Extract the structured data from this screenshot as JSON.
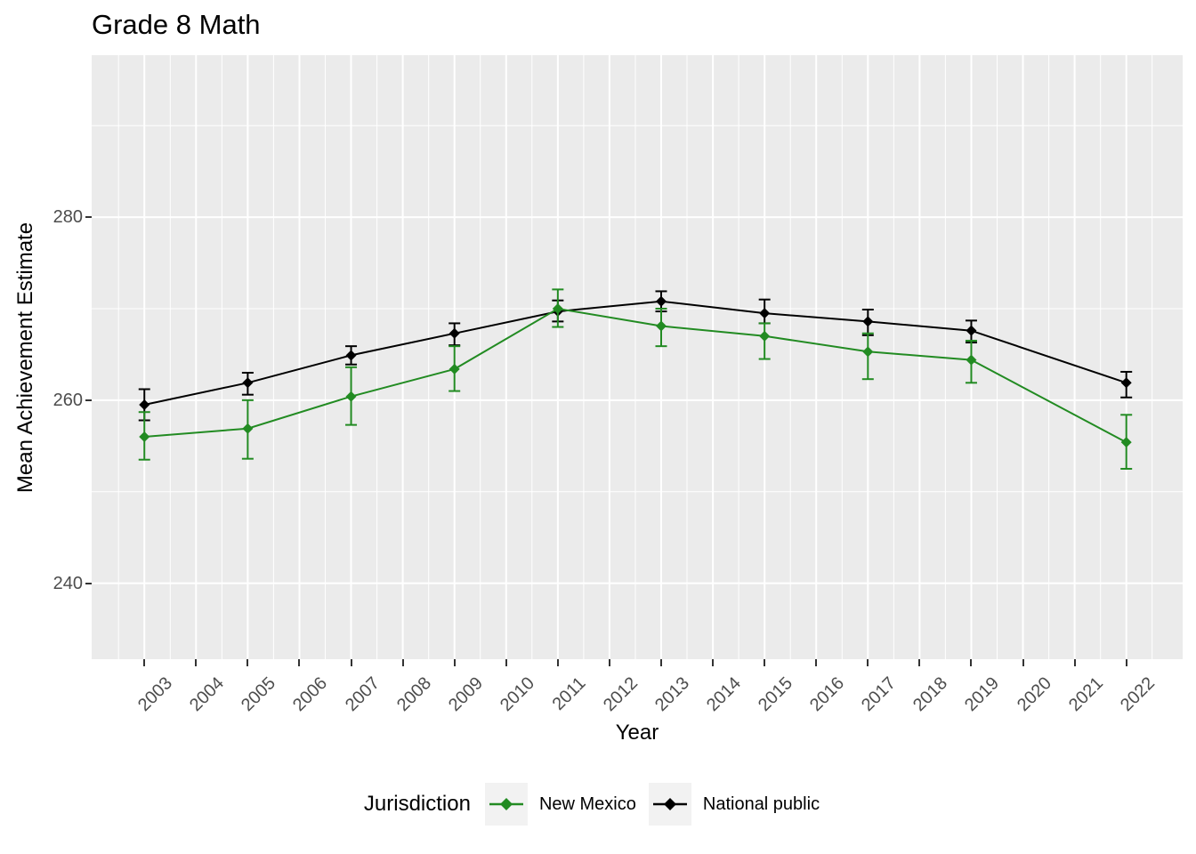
{
  "title": "Grade 8 Math",
  "axes": {
    "x": {
      "label": "Year"
    },
    "y": {
      "label": "Mean Achievement Estimate",
      "minor_ticks": [
        250,
        270,
        290
      ]
    }
  },
  "legend": {
    "title": "Jurisdiction",
    "items": [
      {
        "label": "New Mexico",
        "color": "#228B22"
      },
      {
        "label": "National public",
        "color": "#000000"
      }
    ]
  },
  "colors": {
    "panel_bg": "#EBEBEB",
    "grid": "#FFFFFF",
    "tick_label": "#4D4D4D",
    "tick_mark": "#333333",
    "legend_key_bg": "#F2F2F2"
  },
  "chart_data": {
    "type": "line",
    "title": "Grade 8 Math",
    "xlabel": "Year",
    "ylabel": "Mean Achievement Estimate",
    "x": [
      2003,
      2005,
      2007,
      2009,
      2011,
      2013,
      2015,
      2017,
      2019,
      2022
    ],
    "x_ticks": [
      2003,
      2004,
      2005,
      2006,
      2007,
      2008,
      2009,
      2010,
      2011,
      2012,
      2013,
      2014,
      2015,
      2016,
      2017,
      2018,
      2019,
      2020,
      2021,
      2022
    ],
    "y_ticks": [
      240,
      260,
      280
    ],
    "y_minor_ticks": [
      250,
      270,
      290
    ],
    "xlim": [
      2001.98,
      2023.09
    ],
    "ylim": [
      231.7,
      297.7
    ],
    "grid": true,
    "legend_position": "bottom",
    "error_bars": true,
    "marker": "diamond",
    "series": [
      {
        "name": "National public",
        "color": "#000000",
        "values": [
          259.5,
          261.9,
          264.9,
          267.3,
          269.7,
          270.8,
          269.5,
          268.6,
          267.6,
          261.9
        ],
        "ci_low": [
          257.8,
          260.6,
          263.9,
          266.0,
          268.6,
          269.7,
          268.4,
          267.1,
          266.3,
          260.3
        ],
        "ci_high": [
          261.2,
          263.0,
          265.9,
          268.4,
          270.9,
          271.9,
          271.0,
          269.9,
          268.7,
          263.1
        ]
      },
      {
        "name": "New Mexico",
        "color": "#228B22",
        "values": [
          256.0,
          256.9,
          260.4,
          263.4,
          270.0,
          268.1,
          267.0,
          265.3,
          264.4,
          255.4
        ],
        "ci_low": [
          253.5,
          253.6,
          257.3,
          261.0,
          268.0,
          265.9,
          264.5,
          262.3,
          261.9,
          252.5
        ],
        "ci_high": [
          258.7,
          260.0,
          263.6,
          265.9,
          272.1,
          270.0,
          268.4,
          267.3,
          266.5,
          258.4
        ]
      }
    ]
  }
}
